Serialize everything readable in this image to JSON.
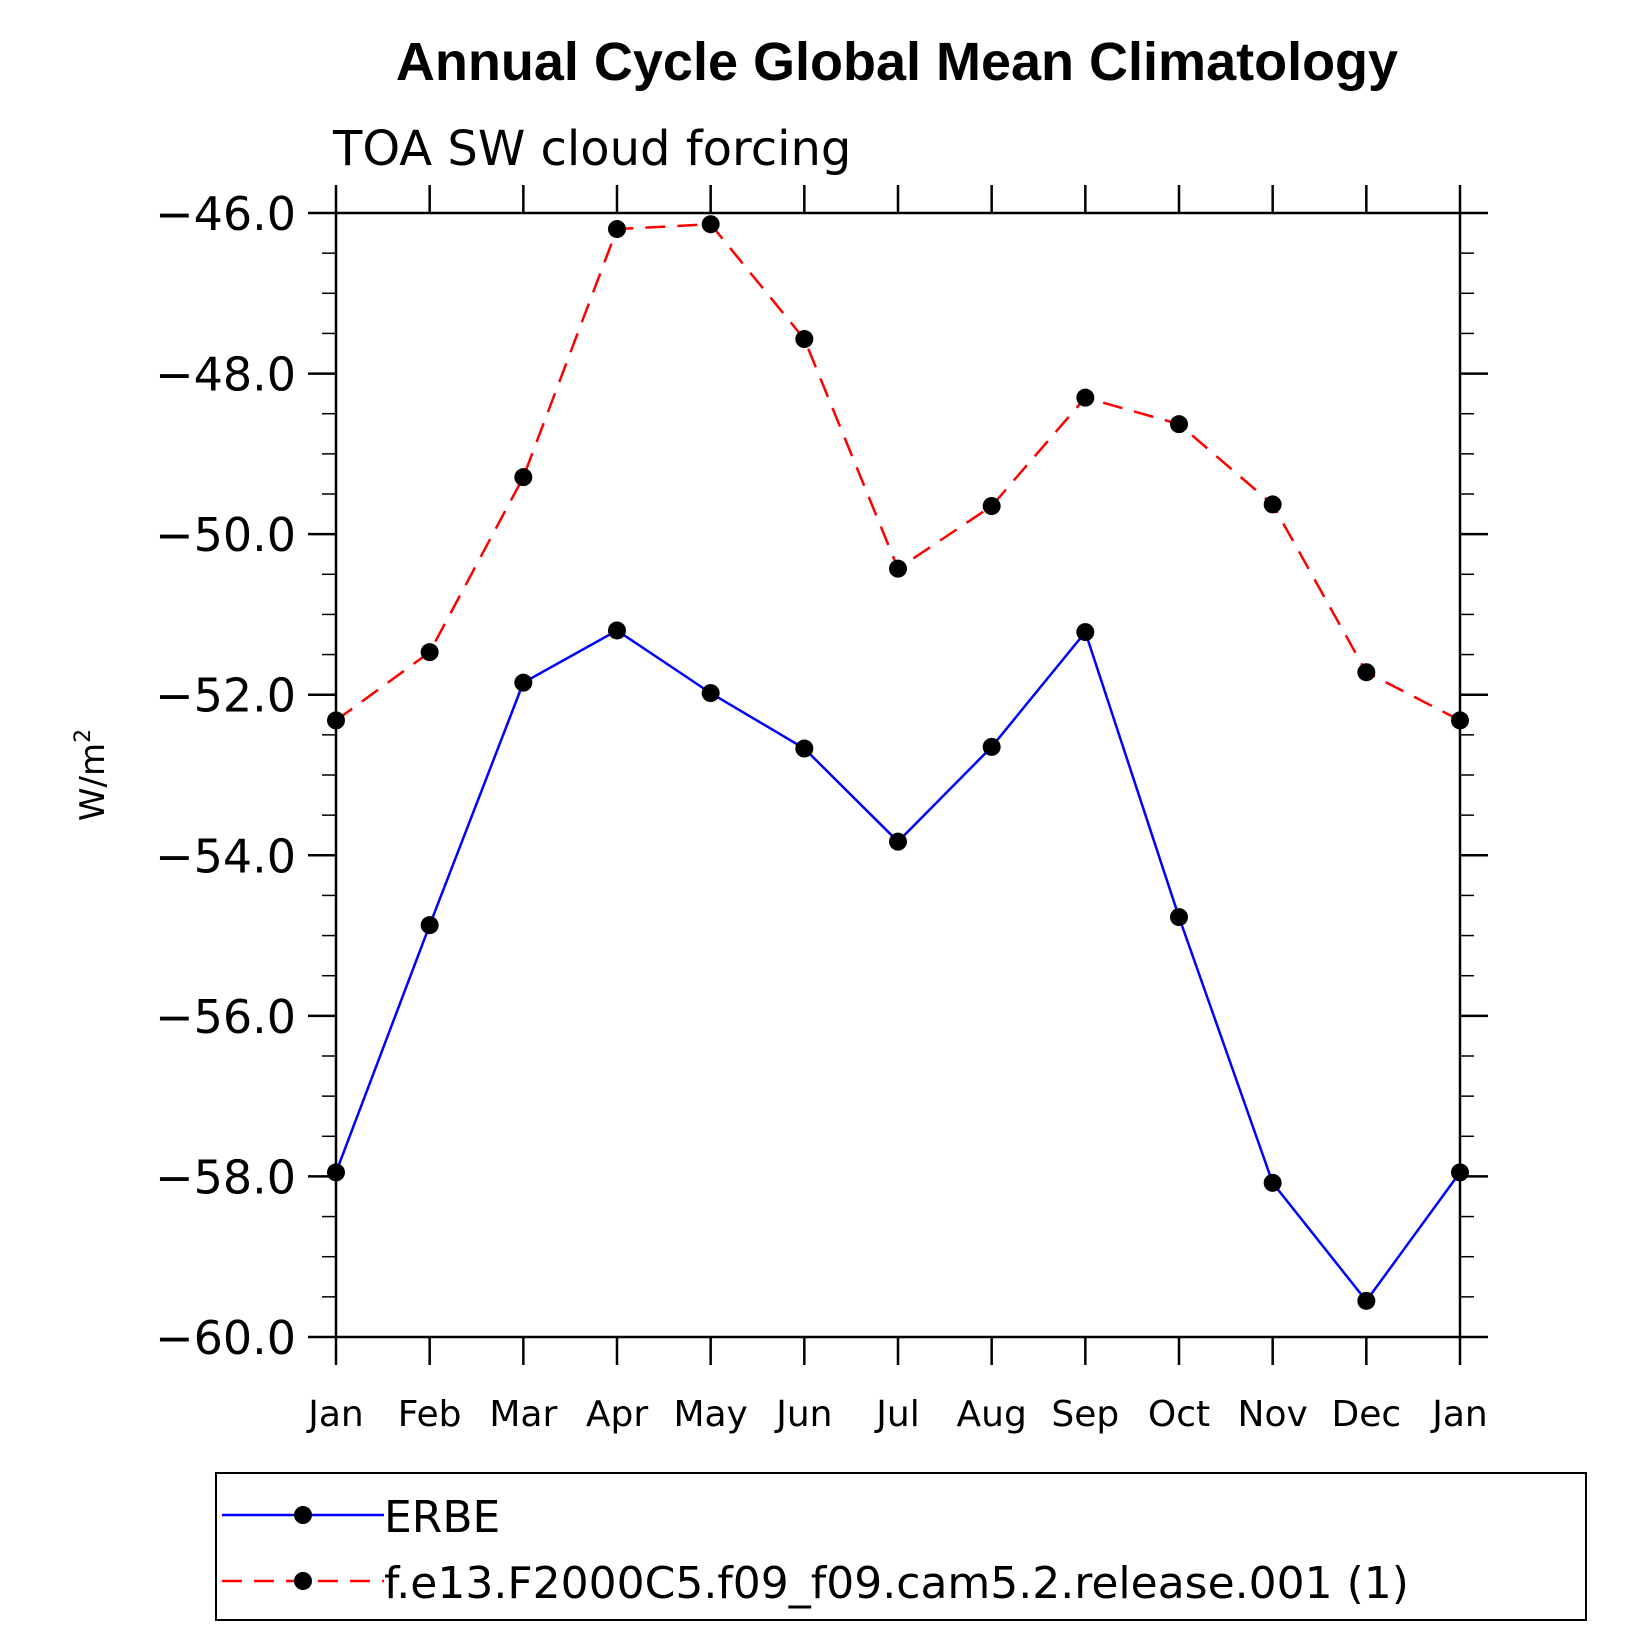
{
  "chart_data": {
    "type": "line",
    "title": "Annual Cycle Global Mean Climatology",
    "subtitle": "TOA SW cloud forcing",
    "ylabel": "W/m",
    "ylabel_sup": "2",
    "xlabel": "",
    "categories": [
      "Jan",
      "Feb",
      "Mar",
      "Apr",
      "May",
      "Jun",
      "Jul",
      "Aug",
      "Sep",
      "Oct",
      "Nov",
      "Dec",
      "Jan"
    ],
    "ylim": [
      -60.0,
      -46.0
    ],
    "yticks": [
      -46.0,
      -48.0,
      -50.0,
      -52.0,
      -54.0,
      -56.0,
      -58.0,
      -60.0
    ],
    "ytick_labels": [
      "−46.0",
      "−48.0",
      "−50.0",
      "−52.0",
      "−54.0",
      "−56.0",
      "−58.0",
      "−60.0"
    ],
    "grid": false,
    "legend_position": "bottom",
    "series": [
      {
        "name": "ERBE",
        "color": "#0000ff",
        "style": "solid",
        "marker": "filled-circle",
        "values": [
          -57.95,
          -54.87,
          -51.85,
          -51.2,
          -51.98,
          -52.67,
          -53.83,
          -52.65,
          -51.22,
          -54.77,
          -58.08,
          -59.55,
          -57.95
        ]
      },
      {
        "name": "f.e13.F2000C5.f09_f09.cam5.2.release.001 (1)",
        "color": "#ff0000",
        "style": "dashed",
        "marker": "filled-circle",
        "values": [
          -52.32,
          -51.47,
          -49.29,
          -46.2,
          -46.14,
          -47.57,
          -50.43,
          -49.65,
          -48.3,
          -48.63,
          -49.63,
          -51.72,
          -52.32
        ]
      }
    ]
  }
}
